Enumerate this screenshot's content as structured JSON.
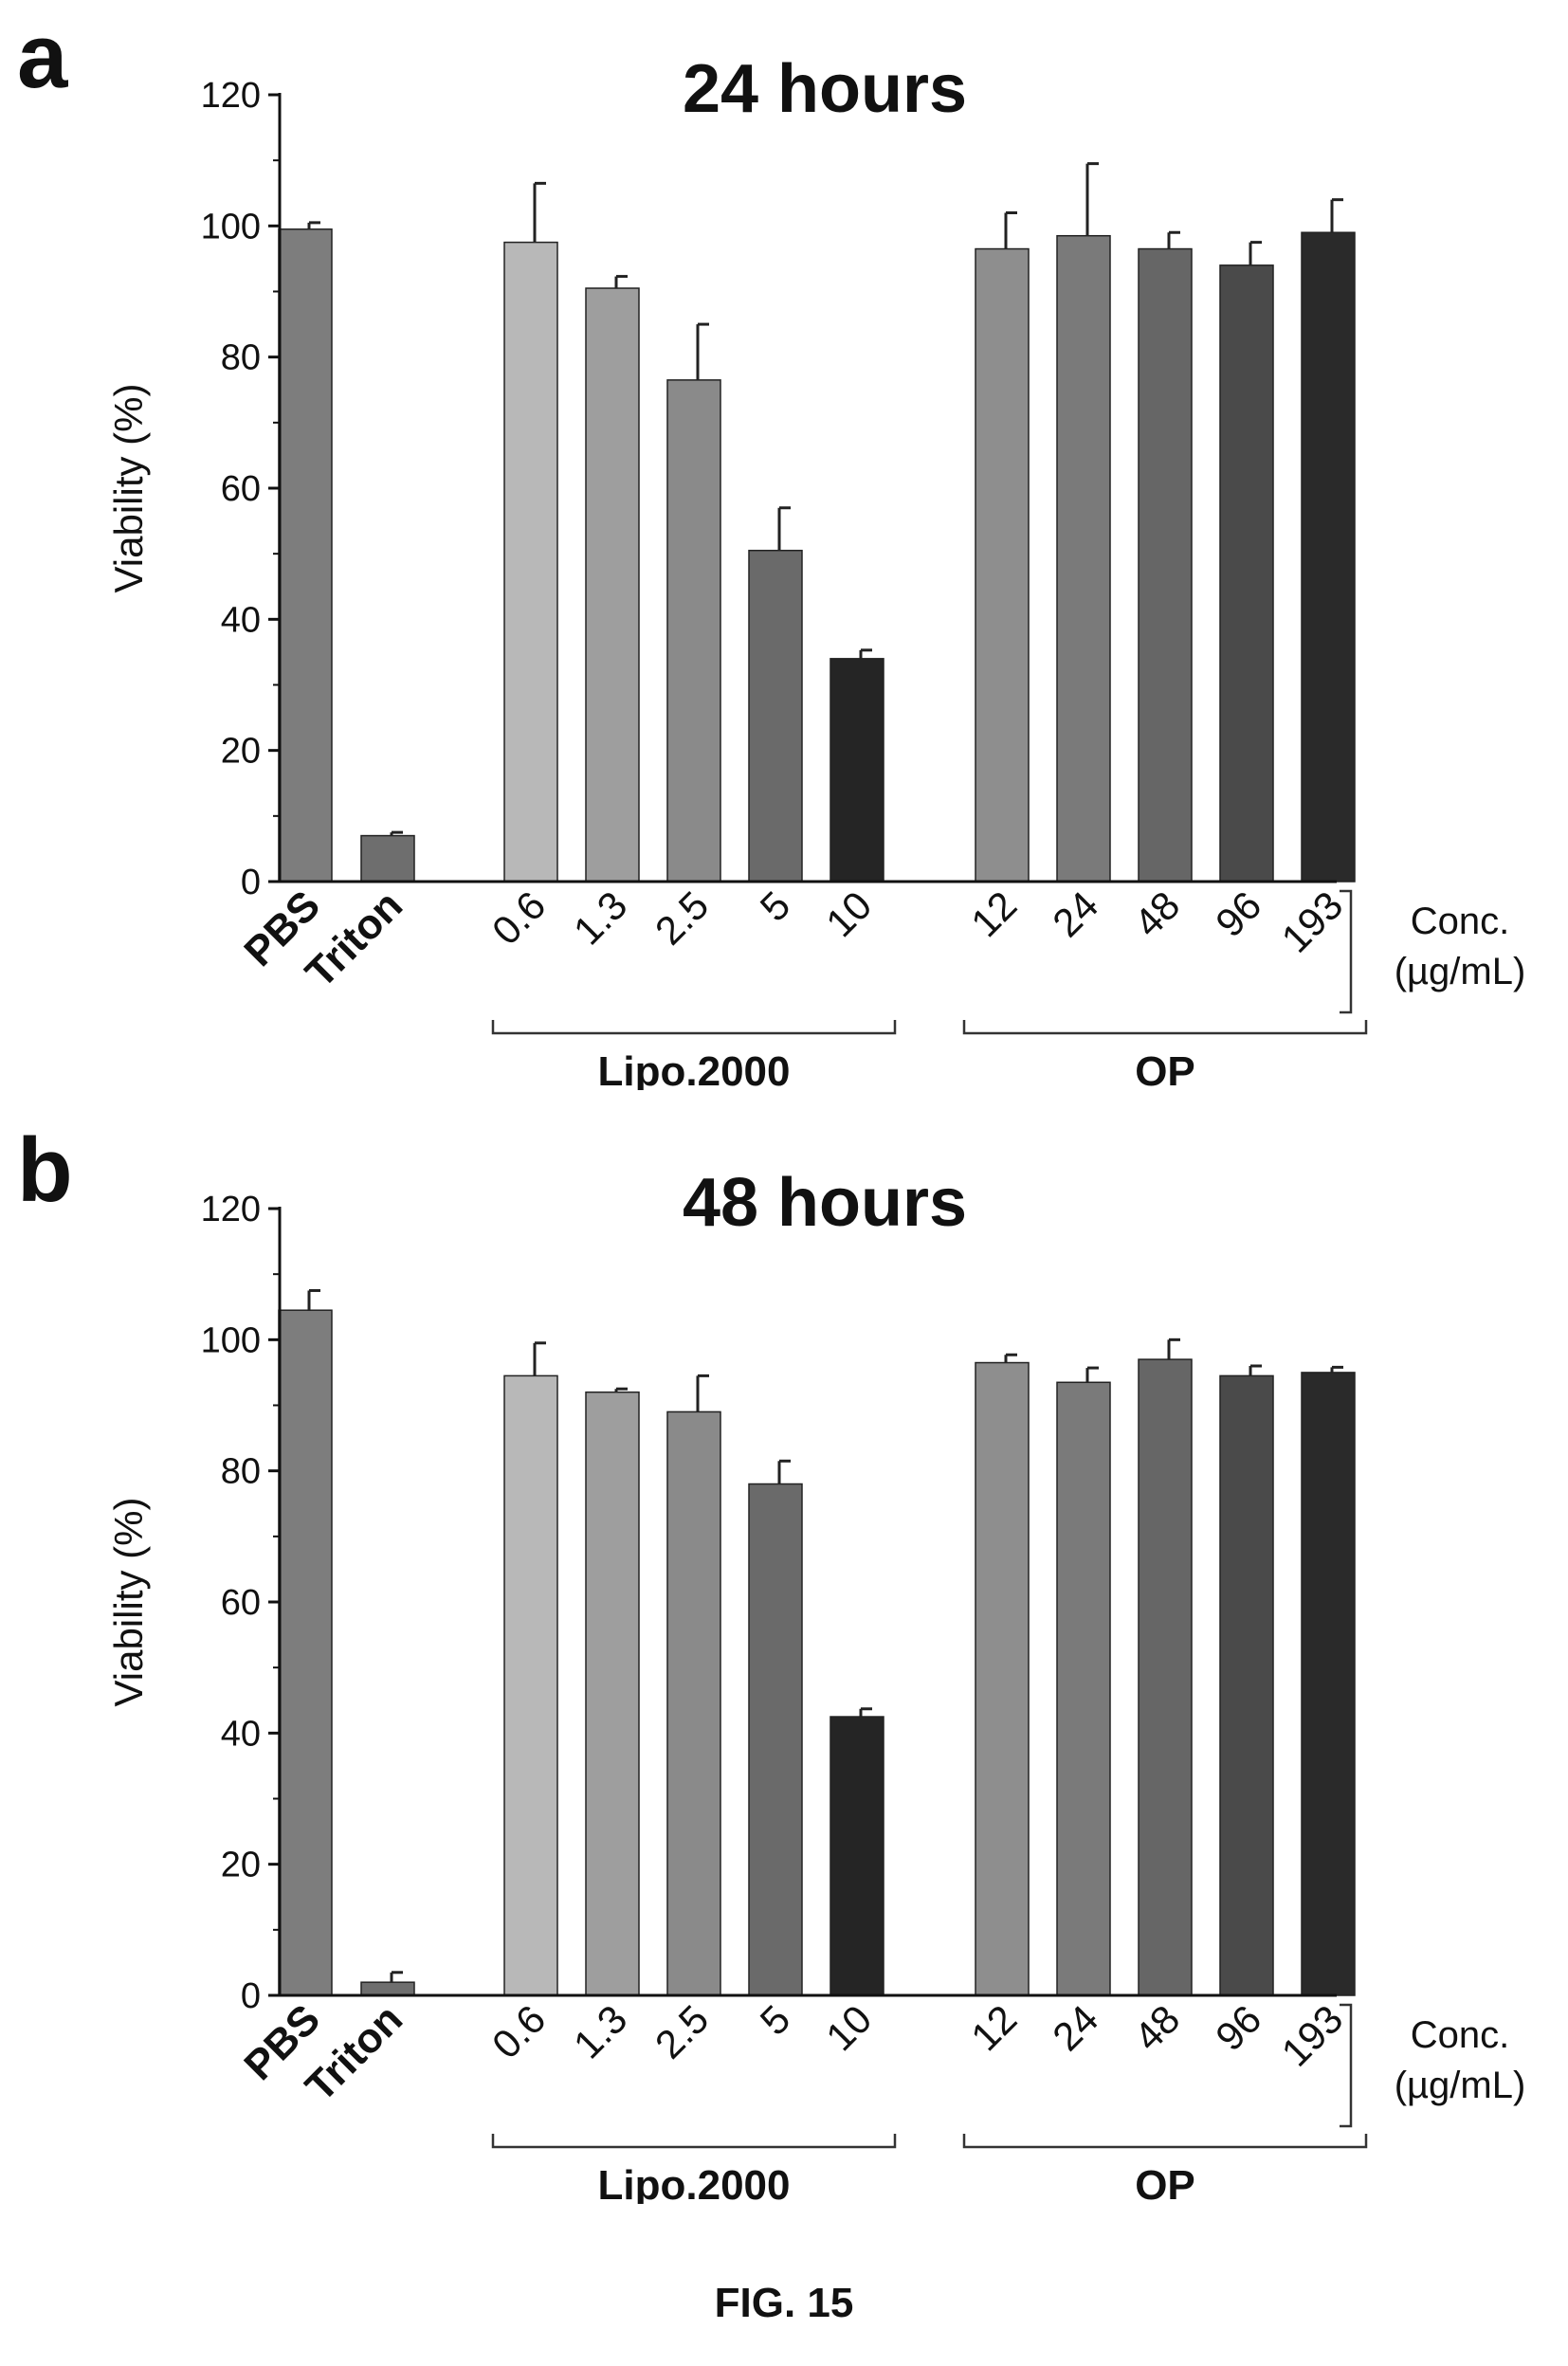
{
  "figure_label": "FIG. 15",
  "chart_data": [
    {
      "type": "bar",
      "panel_letter": "a",
      "title": "24 hours",
      "ylabel": "Viability (%)",
      "xlabel": "",
      "ylim": [
        0,
        120
      ],
      "yticks": [
        "0",
        "20",
        "40",
        "60",
        "80",
        "100",
        "120"
      ],
      "categories": [
        "PBS",
        "Triton",
        "0.6",
        "1.3",
        "2.5",
        "5",
        "10",
        "12",
        "24",
        "48",
        "96",
        "193"
      ],
      "bold_categories": [
        "PBS",
        "Triton"
      ],
      "values": [
        99.5,
        7,
        97.5,
        90.5,
        76.5,
        50.5,
        34,
        96.5,
        98.5,
        96.5,
        94,
        99
      ],
      "errors": [
        1,
        0.5,
        9,
        1.8,
        8.5,
        6.5,
        1.3,
        5.5,
        11,
        2.5,
        3.5,
        5
      ],
      "colors": [
        "#7d7d7d",
        "#6e6e6e",
        "#b8b8b8",
        "#9e9e9e",
        "#8a8a8a",
        "#6a6a6a",
        "#252525",
        "#8e8e8e",
        "#7a7a7a",
        "#666666",
        "#4a4a4a",
        "#2a2a2a"
      ],
      "groups": [
        {
          "label": "Lipo.2000",
          "from": 2,
          "to": 6
        },
        {
          "label": "OP",
          "from": 7,
          "to": 11
        }
      ],
      "conc_label_line1": "Conc.",
      "conc_label_line2": "(µg/mL)"
    },
    {
      "type": "bar",
      "panel_letter": "b",
      "title": "48 hours",
      "ylabel": "Viability (%)",
      "xlabel": "",
      "ylim": [
        0,
        120
      ],
      "yticks": [
        "0",
        "20",
        "40",
        "60",
        "80",
        "100",
        "120"
      ],
      "categories": [
        "PBS",
        "Triton",
        "0.6",
        "1.3",
        "2.5",
        "5",
        "10",
        "12",
        "24",
        "48",
        "96",
        "193"
      ],
      "bold_categories": [
        "PBS",
        "Triton"
      ],
      "values": [
        104.5,
        2,
        94.5,
        92,
        89,
        78,
        42.5,
        96.5,
        93.5,
        97,
        94.5,
        95
      ],
      "errors": [
        3,
        1.5,
        5,
        0.5,
        5.5,
        3.5,
        1.2,
        1.2,
        2.2,
        3,
        1.5,
        0.8
      ],
      "colors": [
        "#7d7d7d",
        "#6e6e6e",
        "#b8b8b8",
        "#9e9e9e",
        "#8a8a8a",
        "#6a6a6a",
        "#252525",
        "#8e8e8e",
        "#7a7a7a",
        "#666666",
        "#4a4a4a",
        "#2a2a2a"
      ],
      "groups": [
        {
          "label": "Lipo.2000",
          "from": 2,
          "to": 6
        },
        {
          "label": "OP",
          "from": 7,
          "to": 11
        }
      ],
      "conc_label_line1": "Conc.",
      "conc_label_line2": "(µg/mL)"
    }
  ]
}
